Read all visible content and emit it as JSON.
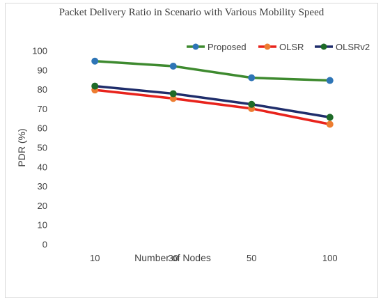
{
  "chart_data": {
    "type": "line",
    "title": "Packet Delivery Ratio in Scenario with Various Mobility Speed",
    "xlabel": "Number of Nodes",
    "ylabel": "PDR (%)",
    "categories": [
      "10",
      "30",
      "50",
      "100"
    ],
    "ylim": [
      0,
      100
    ],
    "yticks": [
      0,
      10,
      20,
      30,
      40,
      50,
      60,
      70,
      80,
      90,
      100
    ],
    "grid": false,
    "legend_position": "top-right",
    "series": [
      {
        "name": "Proposed",
        "values": [
          94.7,
          92.1,
          86.1,
          84.7
        ],
        "line_color": "#3e8a2f",
        "marker_color": "#2e75b6"
      },
      {
        "name": "OLSR",
        "values": [
          79.8,
          75.4,
          70.2,
          62.1
        ],
        "line_color": "#e8231c",
        "marker_color": "#ed7d31"
      },
      {
        "name": "OLSRv2",
        "values": [
          81.8,
          77.9,
          72.4,
          65.7
        ],
        "line_color": "#1f2d6b",
        "marker_color": "#1e6b28"
      }
    ]
  }
}
